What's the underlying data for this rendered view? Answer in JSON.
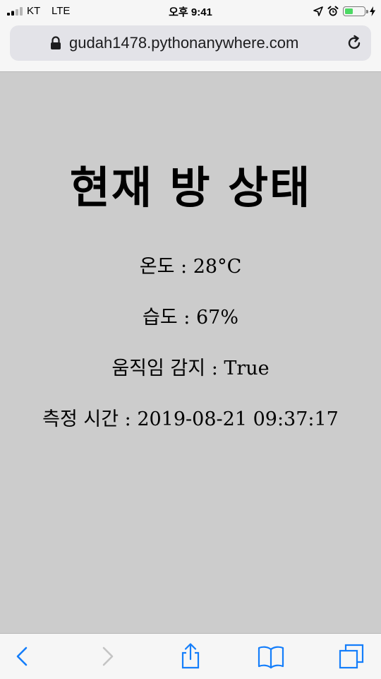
{
  "status_bar": {
    "carrier": "KT",
    "network": "LTE",
    "time": "오후 9:41",
    "battery_level": 0.45,
    "icons": [
      "signal-icon",
      "location-arrow-icon",
      "alarm-icon",
      "battery-icon",
      "charging-icon"
    ]
  },
  "browser": {
    "url": "gudah1478.pythonanywhere.com",
    "icons": [
      "lock-icon",
      "reload-icon"
    ]
  },
  "page": {
    "title": "현재 방 상태",
    "temperature": "온도 : 28°C",
    "humidity": "습도 : 67%",
    "motion": "움직임 감지 : True",
    "measured_time": "측정 시간 : 2019-08-21 09:37:17"
  },
  "toolbar": {
    "icons": [
      "back-icon",
      "forward-icon",
      "share-icon",
      "bookmarks-icon",
      "tabs-icon"
    ]
  },
  "colors": {
    "page_background": "#cccccc",
    "chrome_background": "#f6f6f6",
    "url_bar": "#e3e3e8",
    "accent": "#147efb",
    "battery": "#4cd964"
  }
}
